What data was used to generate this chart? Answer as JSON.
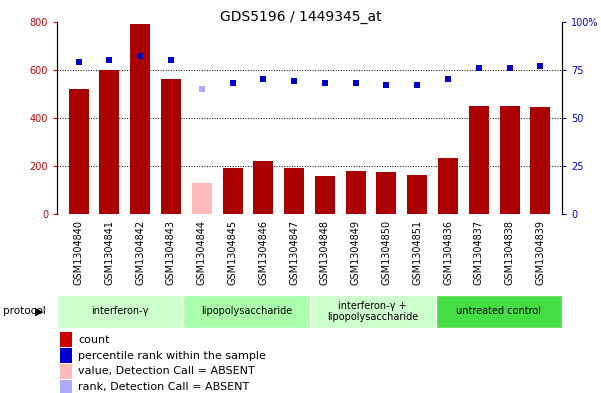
{
  "title": "GDS5196 / 1449345_at",
  "samples": [
    "GSM1304840",
    "GSM1304841",
    "GSM1304842",
    "GSM1304843",
    "GSM1304844",
    "GSM1304845",
    "GSM1304846",
    "GSM1304847",
    "GSM1304848",
    "GSM1304849",
    "GSM1304850",
    "GSM1304851",
    "GSM1304836",
    "GSM1304837",
    "GSM1304838",
    "GSM1304839"
  ],
  "bar_values": [
    520,
    600,
    790,
    560,
    130,
    190,
    220,
    190,
    160,
    180,
    175,
    163,
    235,
    450,
    450,
    445
  ],
  "bar_colors": [
    "#aa0000",
    "#aa0000",
    "#aa0000",
    "#aa0000",
    "#ffbbbb",
    "#aa0000",
    "#aa0000",
    "#aa0000",
    "#aa0000",
    "#aa0000",
    "#aa0000",
    "#aa0000",
    "#aa0000",
    "#aa0000",
    "#aa0000",
    "#aa0000"
  ],
  "rank_values": [
    79,
    80,
    82,
    80,
    65,
    68,
    70,
    69,
    68,
    68,
    67,
    67,
    70,
    76,
    76,
    77
  ],
  "rank_colors": [
    "#0000cc",
    "#0000cc",
    "#0000cc",
    "#0000cc",
    "#aaaaff",
    "#0000cc",
    "#0000cc",
    "#0000cc",
    "#0000cc",
    "#0000cc",
    "#0000cc",
    "#0000cc",
    "#0000cc",
    "#0000cc",
    "#0000cc",
    "#0000cc"
  ],
  "ylim_left": [
    0,
    800
  ],
  "ylim_right": [
    0,
    100
  ],
  "yticks_left": [
    0,
    200,
    400,
    600,
    800
  ],
  "yticks_right": [
    0,
    25,
    50,
    75,
    100
  ],
  "ytick_labels_right": [
    "0",
    "25",
    "50",
    "75",
    "100%"
  ],
  "grid_values": [
    200,
    400,
    600
  ],
  "protocols": [
    {
      "label": "interferon-γ",
      "start": 0,
      "end": 4,
      "color": "#ccffcc"
    },
    {
      "label": "lipopolysaccharide",
      "start": 4,
      "end": 8,
      "color": "#aaffaa"
    },
    {
      "label": "interferon-γ +\nlipopolysaccharide",
      "start": 8,
      "end": 12,
      "color": "#ccffcc"
    },
    {
      "label": "untreated control",
      "start": 12,
      "end": 16,
      "color": "#44dd44"
    }
  ],
  "legend_items": [
    {
      "label": "count",
      "color": "#cc0000"
    },
    {
      "label": "percentile rank within the sample",
      "color": "#0000cc"
    },
    {
      "label": "value, Detection Call = ABSENT",
      "color": "#ffbbbb"
    },
    {
      "label": "rank, Detection Call = ABSENT",
      "color": "#aaaaff"
    }
  ],
  "plot_bg_color": "#ffffff",
  "xtick_bg_color": "#dddddd",
  "bar_width": 0.65,
  "title_fontsize": 10,
  "tick_fontsize": 7,
  "legend_fontsize": 8
}
